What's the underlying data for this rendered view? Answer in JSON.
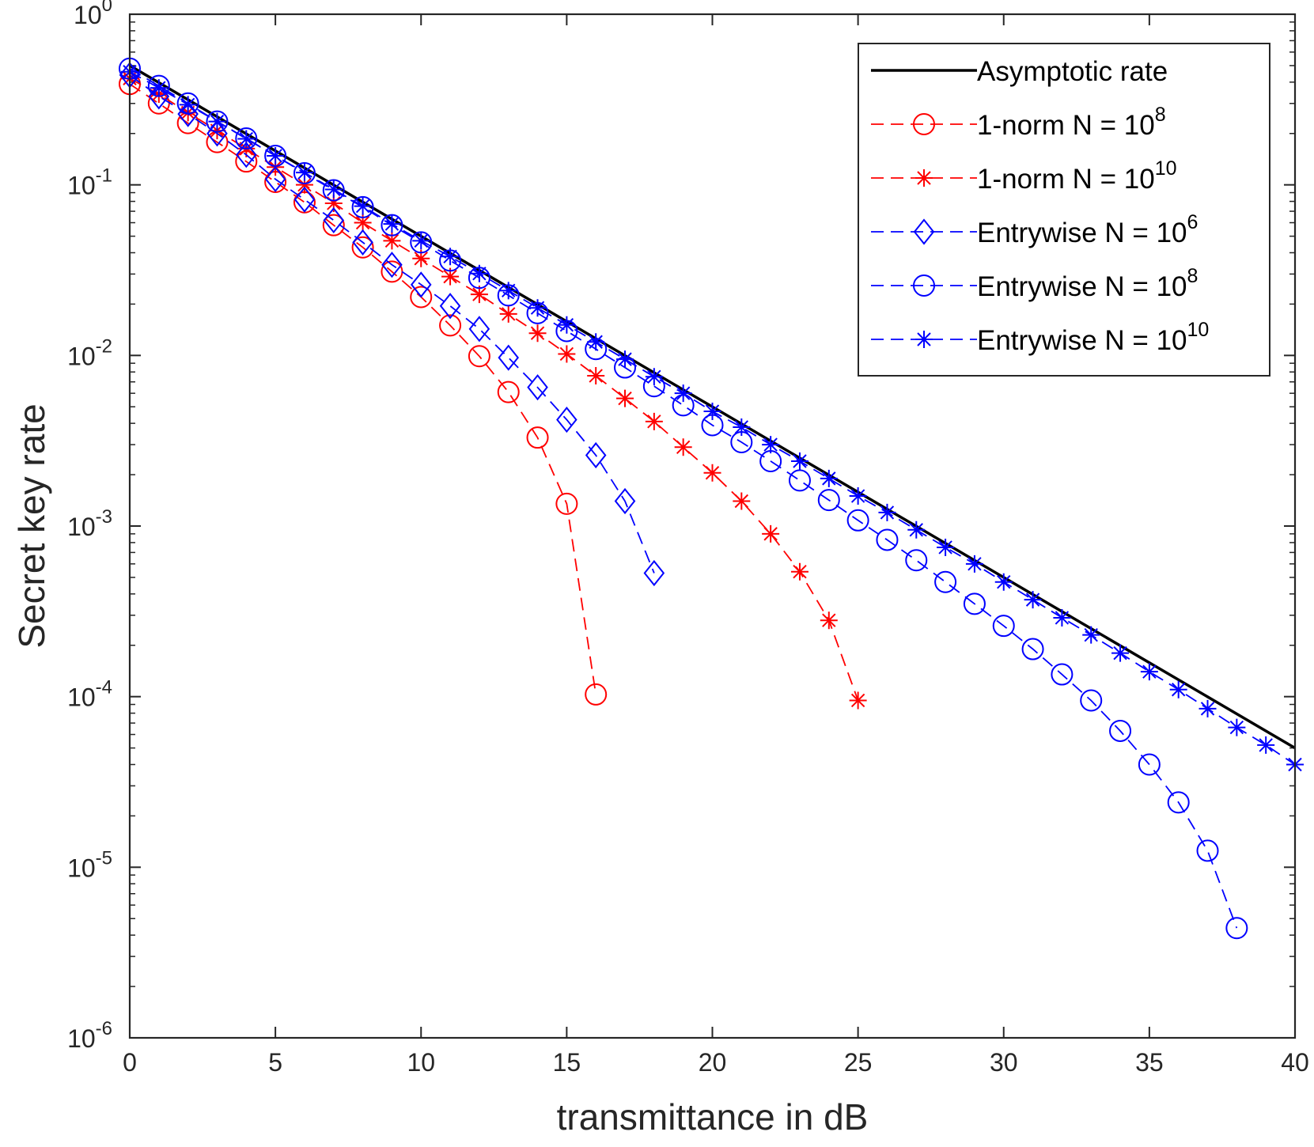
{
  "chart_data": {
    "type": "line",
    "title": "",
    "xlabel": "transmittance in dB",
    "ylabel": "Secret key rate",
    "xscale": "linear",
    "yscale": "log",
    "xlim": [
      0,
      40
    ],
    "ylim": [
      1e-06,
      1
    ],
    "x_ticks": [
      {
        "value": 0,
        "label": "0"
      },
      {
        "value": 5,
        "label": "5"
      },
      {
        "value": 10,
        "label": "10"
      },
      {
        "value": 15,
        "label": "15"
      },
      {
        "value": 20,
        "label": "20"
      },
      {
        "value": 25,
        "label": "25"
      },
      {
        "value": 30,
        "label": "30"
      },
      {
        "value": 35,
        "label": "35"
      },
      {
        "value": 40,
        "label": "40"
      }
    ],
    "y_ticks": [
      {
        "value": 1,
        "base": "10",
        "exp": "0"
      },
      {
        "value": 0.1,
        "base": "10",
        "exp": "-1"
      },
      {
        "value": 0.01,
        "base": "10",
        "exp": "-2"
      },
      {
        "value": 0.001,
        "base": "10",
        "exp": "-3"
      },
      {
        "value": 0.0001,
        "base": "10",
        "exp": "-4"
      },
      {
        "value": 1e-05,
        "base": "10",
        "exp": "-5"
      },
      {
        "value": 1e-06,
        "base": "10",
        "exp": "-6"
      }
    ],
    "grid": false,
    "legend_position": "top-right",
    "series": [
      {
        "name": "Asymptotic rate",
        "legend_text": "Asymptotic rate",
        "legend_sup": "",
        "color": "#000000",
        "line": "solid",
        "marker": "none",
        "x": [
          0,
          40
        ],
        "y": [
          0.5,
          5e-05
        ]
      },
      {
        "name": "1-norm N = 10^8",
        "legend_text": "1-norm N = 10",
        "legend_sup": "8",
        "color": "#ff0000",
        "line": "dashed",
        "marker": "circle",
        "x": [
          0,
          1,
          2,
          3,
          4,
          5,
          6,
          7,
          8,
          9,
          10,
          11,
          12,
          13,
          14,
          15,
          16
        ],
        "y": [
          0.39,
          0.3,
          0.23,
          0.178,
          0.137,
          0.104,
          0.079,
          0.058,
          0.043,
          0.031,
          0.022,
          0.015,
          0.0099,
          0.0061,
          0.0033,
          0.00135,
          0.000103
        ]
      },
      {
        "name": "1-norm N = 10^10",
        "legend_text": "1-norm N = 10",
        "legend_sup": "10",
        "color": "#ff0000",
        "line": "dashed",
        "marker": "asterisk",
        "x": [
          0,
          1,
          2,
          3,
          4,
          5,
          6,
          7,
          8,
          9,
          10,
          11,
          12,
          13,
          14,
          15,
          16,
          17,
          18,
          19,
          20,
          21,
          22,
          23,
          24,
          25
        ],
        "y": [
          0.42,
          0.34,
          0.265,
          0.208,
          0.163,
          0.127,
          0.1,
          0.078,
          0.06,
          0.047,
          0.037,
          0.029,
          0.0228,
          0.0175,
          0.0135,
          0.0102,
          0.0076,
          0.0056,
          0.0041,
          0.0029,
          0.00205,
          0.0014,
          0.0009,
          0.00054,
          0.00028,
          9.5e-05
        ]
      },
      {
        "name": "Entrywise N = 10^6",
        "legend_text": "Entrywise N = 10",
        "legend_sup": "6",
        "color": "#0000ff",
        "line": "dashed",
        "marker": "diamond",
        "x": [
          0,
          1,
          2,
          3,
          4,
          5,
          6,
          7,
          8,
          9,
          10,
          11,
          12,
          13,
          14,
          15,
          16,
          17,
          18
        ],
        "y": [
          0.44,
          0.33,
          0.26,
          0.2,
          0.15,
          0.108,
          0.082,
          0.062,
          0.046,
          0.034,
          0.026,
          0.0195,
          0.0143,
          0.0097,
          0.0065,
          0.0042,
          0.0026,
          0.0014,
          0.00053
        ]
      },
      {
        "name": "Entrywise N = 10^8",
        "legend_text": "Entrywise N = 10",
        "legend_sup": "8",
        "color": "#0000ff",
        "line": "dashed",
        "marker": "circle",
        "x": [
          0,
          1,
          2,
          3,
          4,
          5,
          6,
          7,
          8,
          9,
          10,
          11,
          12,
          13,
          14,
          15,
          16,
          17,
          18,
          19,
          20,
          21,
          22,
          23,
          24,
          25,
          26,
          27,
          28,
          29,
          30,
          31,
          32,
          33,
          34,
          35,
          36,
          37,
          38
        ],
        "y": [
          0.48,
          0.38,
          0.3,
          0.235,
          0.187,
          0.148,
          0.117,
          0.093,
          0.074,
          0.058,
          0.046,
          0.036,
          0.0285,
          0.0225,
          0.0177,
          0.0139,
          0.0109,
          0.0085,
          0.0066,
          0.0051,
          0.0039,
          0.0031,
          0.0024,
          0.00185,
          0.00142,
          0.00108,
          0.00083,
          0.00063,
          0.00047,
          0.00035,
          0.00026,
          0.00019,
          0.000135,
          9.5e-05,
          6.3e-05,
          4e-05,
          2.4e-05,
          1.25e-05,
          4.4e-06
        ]
      },
      {
        "name": "Entrywise N = 10^10",
        "legend_text": "Entrywise N = 10",
        "legend_sup": "10",
        "color": "#0000ff",
        "line": "dashed",
        "marker": "asterisk",
        "x": [
          0,
          1,
          2,
          3,
          4,
          5,
          6,
          7,
          8,
          9,
          10,
          11,
          12,
          13,
          14,
          15,
          16,
          17,
          18,
          19,
          20,
          21,
          22,
          23,
          24,
          25,
          26,
          27,
          28,
          29,
          30,
          31,
          32,
          33,
          34,
          35,
          36,
          37,
          38,
          39,
          40
        ],
        "y": [
          0.46,
          0.37,
          0.295,
          0.235,
          0.186,
          0.148,
          0.118,
          0.094,
          0.075,
          0.059,
          0.047,
          0.038,
          0.0302,
          0.024,
          0.019,
          0.0151,
          0.012,
          0.0095,
          0.0075,
          0.006,
          0.0047,
          0.0038,
          0.003,
          0.0024,
          0.0019,
          0.0015,
          0.0012,
          0.00095,
          0.00075,
          0.0006,
          0.00047,
          0.00037,
          0.00029,
          0.00023,
          0.00018,
          0.00014,
          0.00011,
          8.5e-05,
          6.6e-05,
          5.2e-05,
          4e-05
        ]
      }
    ]
  }
}
